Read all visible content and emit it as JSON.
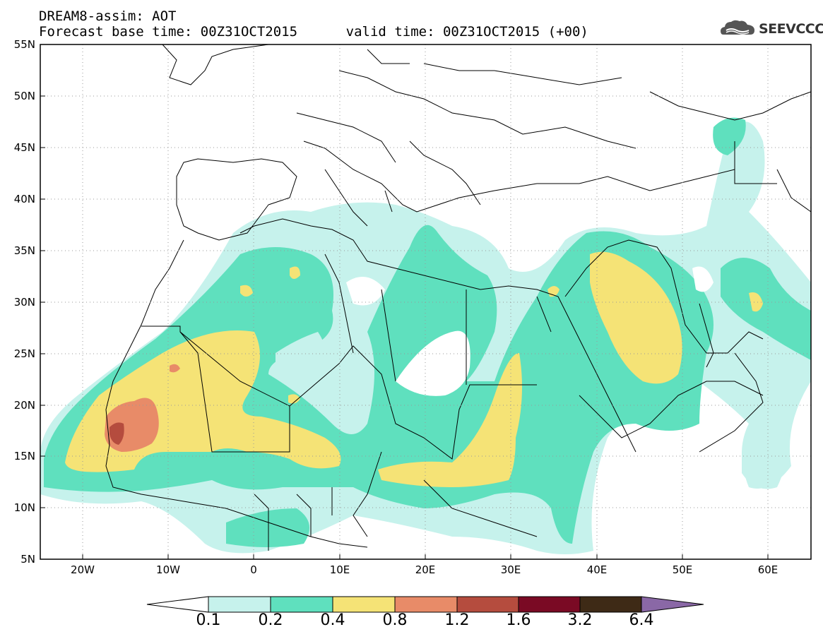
{
  "header": {
    "title": "DREAM8-assim: AOT",
    "subtitle": "Forecast base time: 00Z31OCT2015      valid time: 00Z31OCT2015 (+00)",
    "logo_text": "SEEVCCC"
  },
  "map": {
    "lon_range": [
      -25,
      65
    ],
    "lat_range": [
      5,
      55
    ],
    "y_ticks": [
      "55N",
      "50N",
      "45N",
      "40N",
      "35N",
      "30N",
      "25N",
      "20N",
      "15N",
      "10N",
      "5N"
    ],
    "x_ticks": [
      "20W",
      "10W",
      "0",
      "10E",
      "20E",
      "30E",
      "40E",
      "50E",
      "60E"
    ]
  },
  "colorbar": {
    "levels": [
      "0.1",
      "0.2",
      "0.4",
      "0.8",
      "1.2",
      "1.6",
      "3.2",
      "6.4"
    ],
    "colors": [
      "#c6f2ec",
      "#5fe0be",
      "#f5e376",
      "#e88b68",
      "#b54c3e",
      "#7a0a24",
      "#3e2a16",
      "#8a68a6"
    ]
  }
}
